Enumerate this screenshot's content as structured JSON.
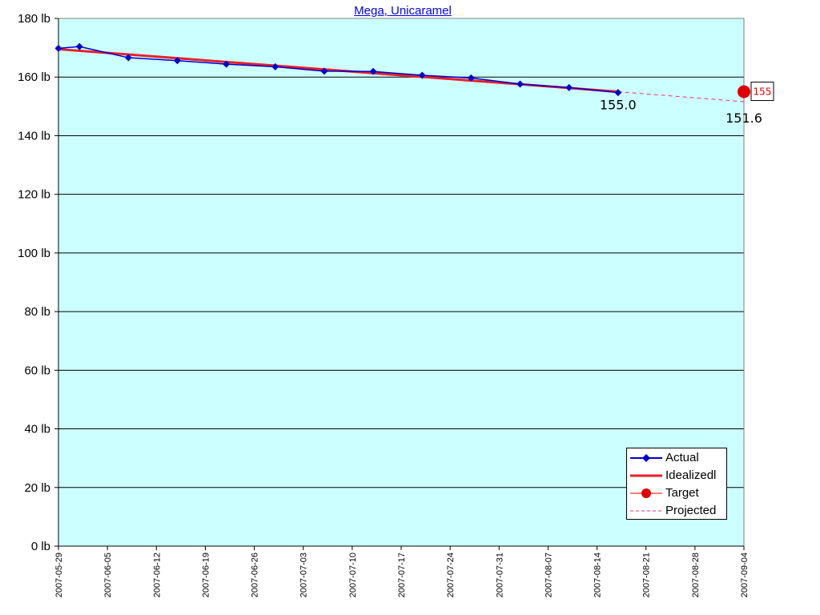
{
  "title": "Mega, Unicaramel",
  "chart_data": {
    "type": "line",
    "title": "Mega, Unicaramel",
    "xlabel": "",
    "ylabel": "",
    "ylim": [
      0,
      180
    ],
    "y_ticks": [
      0,
      20,
      40,
      60,
      80,
      100,
      120,
      140,
      160,
      180
    ],
    "y_tick_suffix": " lb",
    "x_range": [
      "2007-05-29",
      "2007-09-04"
    ],
    "x_ticks": [
      "2007-05-29",
      "2007-06-05",
      "2007-06-12",
      "2007-06-19",
      "2007-06-26",
      "2007-07-03",
      "2007-07-10",
      "2007-07-17",
      "2007-07-24",
      "2007-07-31",
      "2007-08-07",
      "2007-08-14",
      "2007-08-21",
      "2007-08-28",
      "2007-09-04"
    ],
    "grid": "horizontal",
    "plot_background": "#ccffff",
    "legend_position": "bottom-right",
    "series": [
      {
        "name": "Actual",
        "color": "#0000cc",
        "marker": "diamond",
        "x": [
          "2007-05-29",
          "2007-06-01",
          "2007-06-08",
          "2007-06-15",
          "2007-06-22",
          "2007-06-29",
          "2007-07-06",
          "2007-07-13",
          "2007-07-20",
          "2007-07-27",
          "2007-08-03",
          "2007-08-10",
          "2007-08-17"
        ],
        "y": [
          169.8,
          170.4,
          166.6,
          165.6,
          164.4,
          163.5,
          162.0,
          161.9,
          160.6,
          159.7,
          157.6,
          156.4,
          154.7
        ]
      },
      {
        "name": "Idealizedl",
        "color": "#e8202a",
        "x": [
          "2007-05-29",
          "2007-08-17"
        ],
        "y": [
          169.5,
          155.0
        ]
      },
      {
        "name": "Target",
        "color": "#e00000",
        "marker": "circle",
        "x": [
          "2007-09-04"
        ],
        "y": [
          155
        ]
      },
      {
        "name": "Projected",
        "color": "#ee3377",
        "style": "dashed",
        "x": [
          "2007-08-17",
          "2007-09-04"
        ],
        "y": [
          155.0,
          151.6
        ]
      }
    ],
    "annotations": [
      {
        "text": "155.0",
        "x": "2007-08-17",
        "y": 155.0
      },
      {
        "text": "151.6",
        "x": "2007-09-04",
        "y": 151.6
      },
      {
        "text": "155",
        "x": "2007-09-04",
        "y": 155,
        "boxed": true,
        "color": "#e00000"
      }
    ]
  }
}
